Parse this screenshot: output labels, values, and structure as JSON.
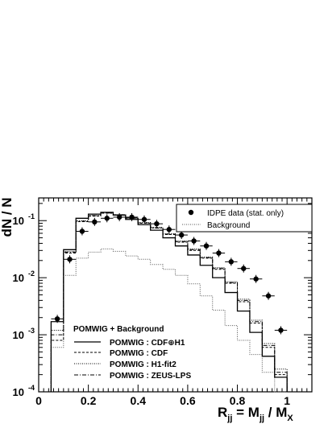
{
  "chart_data": {
    "type": "line",
    "log_y": true,
    "ylim": [
      0.0001,
      0.25
    ],
    "xlim": [
      0,
      1.1
    ],
    "ylabel": "dN / N",
    "xlabel_parts": [
      "R",
      "jj",
      " = M",
      "jj",
      " / M",
      "X"
    ],
    "x_ticks": [
      "0",
      "0.2",
      "0.4",
      "0.6",
      "0.8",
      "1"
    ],
    "x_tick_values": [
      0,
      0.2,
      0.4,
      0.6,
      0.8,
      1.0
    ],
    "y_ticks": [
      {
        "base": "10",
        "exp": "-4",
        "value": 0.0001
      },
      {
        "base": "10",
        "exp": "-3",
        "value": 0.001
      },
      {
        "base": "10",
        "exp": "-2",
        "value": 0.01
      },
      {
        "base": "10",
        "exp": "-1",
        "value": 0.1
      }
    ],
    "bin_edges": [
      0.05,
      0.1,
      0.15,
      0.2,
      0.25,
      0.3,
      0.35,
      0.4,
      0.45,
      0.5,
      0.55,
      0.6,
      0.65,
      0.7,
      0.75,
      0.8,
      0.85,
      0.9,
      0.95,
      1.0
    ],
    "data_points": {
      "name": "IDPE data (stat. only)",
      "x": [
        0.075,
        0.125,
        0.175,
        0.225,
        0.275,
        0.325,
        0.375,
        0.425,
        0.475,
        0.525,
        0.575,
        0.625,
        0.675,
        0.725,
        0.775,
        0.825,
        0.875,
        0.925,
        0.975
      ],
      "y": [
        0.0019,
        0.021,
        0.065,
        0.095,
        0.11,
        0.115,
        0.115,
        0.105,
        0.088,
        0.07,
        0.056,
        0.044,
        0.036,
        0.027,
        0.019,
        0.0145,
        0.0095,
        0.0048,
        0.0012
      ]
    },
    "series": [
      {
        "name": "Background",
        "style": "dotted-gray",
        "values": [
          0.0006,
          0.011,
          0.022,
          0.028,
          0.032,
          0.029,
          0.024,
          0.021,
          0.017,
          0.014,
          0.011,
          0.0078,
          0.0048,
          0.0027,
          0.00145,
          0.0008,
          0.00045,
          0.00022,
          0.0001
        ]
      },
      {
        "name": "POMWIG : CDF⊕H1",
        "style": "solid",
        "values": [
          0.0017,
          0.031,
          0.11,
          0.13,
          0.14,
          0.125,
          0.105,
          0.085,
          0.068,
          0.05,
          0.036,
          0.025,
          0.0165,
          0.01,
          0.0055,
          0.0026,
          0.0011,
          0.00042,
          0.00018
        ]
      },
      {
        "name": "POMWIG : CDF",
        "style": "dashed",
        "values": [
          0.0008,
          0.027,
          0.096,
          0.12,
          0.135,
          0.125,
          0.11,
          0.09,
          0.075,
          0.057,
          0.042,
          0.03,
          0.022,
          0.014,
          0.008,
          0.0038,
          0.0016,
          0.0006,
          0.0002
        ]
      },
      {
        "name": "POMWIG : H1-fit2",
        "style": "dotted",
        "values": [
          0.0012,
          0.029,
          0.1,
          0.125,
          0.138,
          0.128,
          0.112,
          0.093,
          0.076,
          0.059,
          0.044,
          0.032,
          0.023,
          0.015,
          0.0085,
          0.0042,
          0.0018,
          0.0007,
          0.00025
        ]
      },
      {
        "name": "POMWIG : ZEUS-LPS",
        "style": "dashdot",
        "values": [
          0.001,
          0.028,
          0.098,
          0.122,
          0.136,
          0.126,
          0.111,
          0.091,
          0.074,
          0.058,
          0.043,
          0.031,
          0.0225,
          0.0145,
          0.0082,
          0.004,
          0.0017,
          0.00065,
          0.00022
        ]
      }
    ],
    "legend_top": [
      "IDPE data (stat. only)",
      "Background"
    ],
    "legend_bottom_title": "POMWIG + Background",
    "legend_bottom": [
      "POMWIG : CDF⊕H1",
      "POMWIG : CDF",
      "POMWIG : H1-fit2",
      "POMWIG : ZEUS-LPS"
    ],
    "colors": {
      "axis": "#000000",
      "data": "#000000",
      "background_series": "#555555",
      "legend_box": "#000000"
    }
  }
}
